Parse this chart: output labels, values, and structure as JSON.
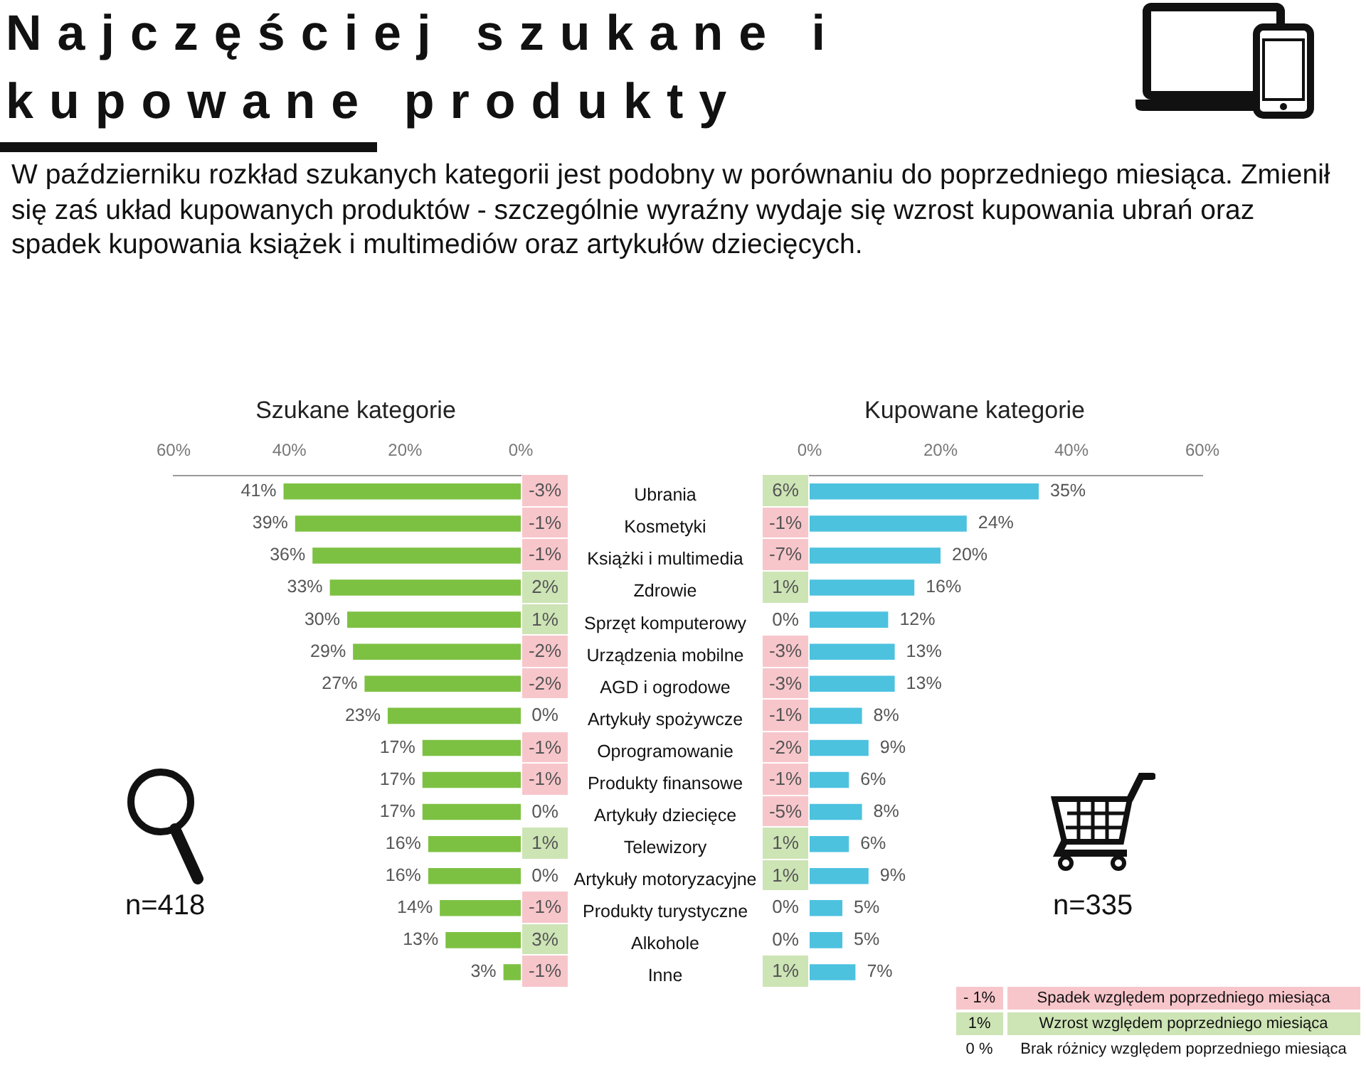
{
  "chart_data": [
    {
      "type": "other",
      "title": "Najczęściej szukane i kupowane produkty",
      "subtitle": "W październiku rozkład szukanych kategorii jest podobny w porównaniu do poprzedniego miesiąca. Zmienił się zaś układ kupowanych produktów - szczególnie wyraźny wydaje się wzrost kupowania ubrań oraz spadek kupowania książek i multimediów oraz artykułów dziecięcych."
    },
    {
      "type": "bar",
      "orientation": "horizontal",
      "title": "Szukane kategorie",
      "annotations": [
        "n=418"
      ],
      "categories": [
        "Ubrania",
        "Kosmetyki",
        "Książki i multimedia",
        "Zdrowie",
        "Sprzęt komputerowy",
        "Urządzenia mobilne",
        "AGD i ogrodowe",
        "Artykuły spożywcze",
        "Oprogramowanie",
        "Produkty finansowe",
        "Artykuły dziecięce",
        "Telewizory",
        "Artykuły motoryzacyjne",
        "Produkty turystyczne",
        "Alkohole",
        "Inne"
      ],
      "values": [
        41,
        39,
        36,
        33,
        30,
        29,
        27,
        23,
        17,
        17,
        17,
        16,
        16,
        14,
        13,
        3
      ],
      "value_labels": [
        "41%",
        "39%",
        "36%",
        "33%",
        "30%",
        "29%",
        "27%",
        "23%",
        "17%",
        "17%",
        "17%",
        "16%",
        "16%",
        "14%",
        "13%",
        "3%"
      ],
      "color": "#7dc142",
      "xlim": [
        60,
        0
      ],
      "xticks": [
        {
          "value": 60,
          "label": "60%"
        },
        {
          "value": 40,
          "label": "40%"
        },
        {
          "value": 20,
          "label": "20%"
        },
        {
          "value": 0,
          "label": "0%"
        }
      ]
    },
    {
      "type": "other",
      "values": [
        -3,
        -1,
        -1,
        2,
        1,
        -2,
        -2,
        0,
        -1,
        -1,
        0,
        1,
        0,
        -1,
        3,
        -1
      ],
      "value_labels": [
        "-3%",
        "-1%",
        "-1%",
        "2%",
        "1%",
        "-2%",
        "-2%",
        "0%",
        "-1%",
        "-1%",
        "0%",
        "1%",
        "0%",
        "-1%",
        "3%",
        "-1%"
      ],
      "colors": [
        "#f7c6cb",
        "#f7c6cb",
        "#f7c6cb",
        "#cde4b5",
        "#cde4b5",
        "#f7c6cb",
        "#f7c6cb",
        "#ffffff",
        "#f7c6cb",
        "#f7c6cb",
        "#ffffff",
        "#cde4b5",
        "#ffffff",
        "#f7c6cb",
        "#cde4b5",
        "#f7c6cb"
      ]
    },
    {
      "type": "other",
      "values": [
        6,
        -1,
        -7,
        1,
        0,
        -3,
        -3,
        -1,
        -2,
        -1,
        -5,
        1,
        1,
        0,
        0,
        1
      ],
      "value_labels": [
        "6%",
        "-1%",
        "-7%",
        "1%",
        "0%",
        "-3%",
        "-3%",
        "-1%",
        "-2%",
        "-1%",
        "-5%",
        "1%",
        "1%",
        "0%",
        "0%",
        "1%"
      ],
      "colors": [
        "#cde4b5",
        "#f7c6cb",
        "#f7c6cb",
        "#cde4b5",
        "#ffffff",
        "#f7c6cb",
        "#f7c6cb",
        "#f7c6cb",
        "#f7c6cb",
        "#f7c6cb",
        "#f7c6cb",
        "#cde4b5",
        "#cde4b5",
        "#ffffff",
        "#ffffff",
        "#cde4b5"
      ]
    },
    {
      "type": "bar",
      "orientation": "horizontal",
      "title": "Kupowane kategorie",
      "annotations": [
        "n=335"
      ],
      "tick_labels": "x",
      "values": [
        35,
        24,
        20,
        16,
        12,
        13,
        13,
        8,
        9,
        6,
        8,
        6,
        9,
        5,
        5,
        7
      ],
      "value_labels": [
        "35%",
        "24%",
        "20%",
        "16%",
        "12%",
        "13%",
        "13%",
        "8%",
        "9%",
        "6%",
        "8%",
        "6%",
        "9%",
        "5%",
        "5%",
        "7%"
      ],
      "color": "#4cc2df",
      "xlim": [
        0,
        60
      ],
      "xticks": [
        {
          "value": 0,
          "label": "0%"
        },
        {
          "value": 20,
          "label": "20%"
        },
        {
          "value": 40,
          "label": "40%"
        },
        {
          "value": 60,
          "label": "60%"
        }
      ]
    },
    {
      "type": "other",
      "annotations": [
        "- 1%",
        "Spadek względem poprzedniego miesiąca",
        "1%",
        "Wzrost względem poprzedniego miesiąca",
        "0 %",
        "Brak różnicy względem poprzedniego miesiąca"
      ]
    }
  ]
}
